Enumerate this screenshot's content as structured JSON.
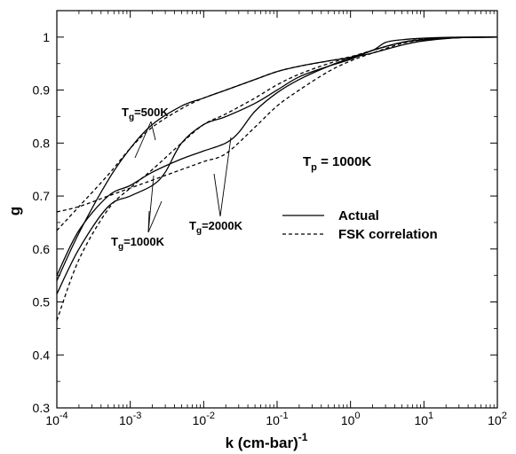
{
  "chart_data": {
    "type": "line",
    "xlabel": "k (cm-bar)",
    "xlabel_sup": "-1",
    "ylabel": "g",
    "x_scale": "log",
    "xlim": [
      0.0001,
      100
    ],
    "ylim": [
      0.3,
      1.05
    ],
    "x_ticks": [
      {
        "base": "10",
        "exp": "-4"
      },
      {
        "base": "10",
        "exp": "-3"
      },
      {
        "base": "10",
        "exp": "-2"
      },
      {
        "base": "10",
        "exp": "-1"
      },
      {
        "base": "10",
        "exp": "0"
      },
      {
        "base": "10",
        "exp": "1"
      },
      {
        "base": "10",
        "exp": "2"
      }
    ],
    "y_ticks": [
      "0.3",
      "0.4",
      "0.5",
      "0.6",
      "0.7",
      "0.8",
      "0.9",
      "1"
    ],
    "grid": false,
    "legend": {
      "placement": "right-middle",
      "entries": [
        {
          "label": "Actual",
          "style": "solid"
        },
        {
          "label": "FSK correlation",
          "style": "dashed"
        }
      ]
    },
    "annotations": [
      {
        "base": "T",
        "sub": "g",
        "rest": "=500K"
      },
      {
        "base": "T",
        "sub": "g",
        "rest": "=1000K"
      },
      {
        "base": "T",
        "sub": "g",
        "rest": "=2000K"
      },
      {
        "base": "T",
        "sub": "p",
        "rest": " = 1000K"
      }
    ],
    "series": [
      {
        "style": "solid",
        "color": "#000000",
        "x": [
          0.0001,
          0.0002,
          0.0005,
          0.001,
          0.002,
          0.005,
          0.01,
          0.02,
          0.05,
          0.1,
          0.2,
          0.5,
          1,
          2,
          3,
          5,
          10,
          30,
          100
        ],
        "y": [
          0.54,
          0.63,
          0.73,
          0.79,
          0.835,
          0.87,
          0.885,
          0.9,
          0.92,
          0.935,
          0.945,
          0.955,
          0.962,
          0.975,
          0.99,
          0.995,
          0.998,
          1.0,
          1.0
        ]
      },
      {
        "style": "solid",
        "color": "#000000",
        "x": [
          0.0001,
          0.0002,
          0.0005,
          0.001,
          0.002,
          0.003,
          0.005,
          0.01,
          0.02,
          0.05,
          0.1,
          0.2,
          0.5,
          1,
          2,
          5,
          10,
          30,
          100
        ],
        "y": [
          0.515,
          0.6,
          0.68,
          0.7,
          0.72,
          0.745,
          0.8,
          0.835,
          0.85,
          0.875,
          0.9,
          0.925,
          0.945,
          0.958,
          0.975,
          0.99,
          0.995,
          0.999,
          1.0
        ]
      },
      {
        "style": "solid",
        "color": "#000000",
        "x": [
          0.0001,
          0.0002,
          0.0005,
          0.001,
          0.002,
          0.005,
          0.01,
          0.02,
          0.03,
          0.05,
          0.1,
          0.2,
          0.5,
          1,
          2,
          5,
          10,
          30,
          100
        ],
        "y": [
          0.55,
          0.635,
          0.7,
          0.72,
          0.745,
          0.77,
          0.785,
          0.8,
          0.82,
          0.86,
          0.895,
          0.92,
          0.945,
          0.96,
          0.97,
          0.985,
          0.993,
          0.999,
          1.0
        ]
      },
      {
        "style": "dashed",
        "color": "#000000",
        "x": [
          0.0001,
          0.0002,
          0.0005,
          0.001,
          0.002,
          0.005,
          0.01,
          0.02,
          0.05,
          0.1,
          0.2,
          0.5,
          1,
          2,
          5,
          10,
          30,
          100
        ],
        "y": [
          0.635,
          0.68,
          0.74,
          0.79,
          0.83,
          0.865,
          0.885,
          0.9,
          0.92,
          0.935,
          0.945,
          0.955,
          0.963,
          0.975,
          0.99,
          0.996,
          0.999,
          1.0
        ]
      },
      {
        "style": "dashed",
        "color": "#000000",
        "x": [
          0.0001,
          0.0002,
          0.0005,
          0.001,
          0.002,
          0.005,
          0.01,
          0.02,
          0.05,
          0.1,
          0.2,
          0.5,
          1,
          2,
          5,
          10,
          30,
          100
        ],
        "y": [
          0.465,
          0.58,
          0.675,
          0.715,
          0.75,
          0.8,
          0.835,
          0.855,
          0.885,
          0.91,
          0.93,
          0.95,
          0.962,
          0.975,
          0.99,
          0.996,
          0.999,
          1.0
        ]
      },
      {
        "style": "dashed",
        "color": "#000000",
        "x": [
          0.0001,
          0.0002,
          0.0005,
          0.001,
          0.002,
          0.005,
          0.01,
          0.02,
          0.05,
          0.1,
          0.2,
          0.5,
          1,
          2,
          5,
          10,
          30,
          100
        ],
        "y": [
          0.67,
          0.68,
          0.7,
          0.715,
          0.73,
          0.75,
          0.765,
          0.78,
          0.83,
          0.87,
          0.9,
          0.935,
          0.955,
          0.97,
          0.988,
          0.995,
          0.999,
          1.0
        ]
      }
    ]
  }
}
